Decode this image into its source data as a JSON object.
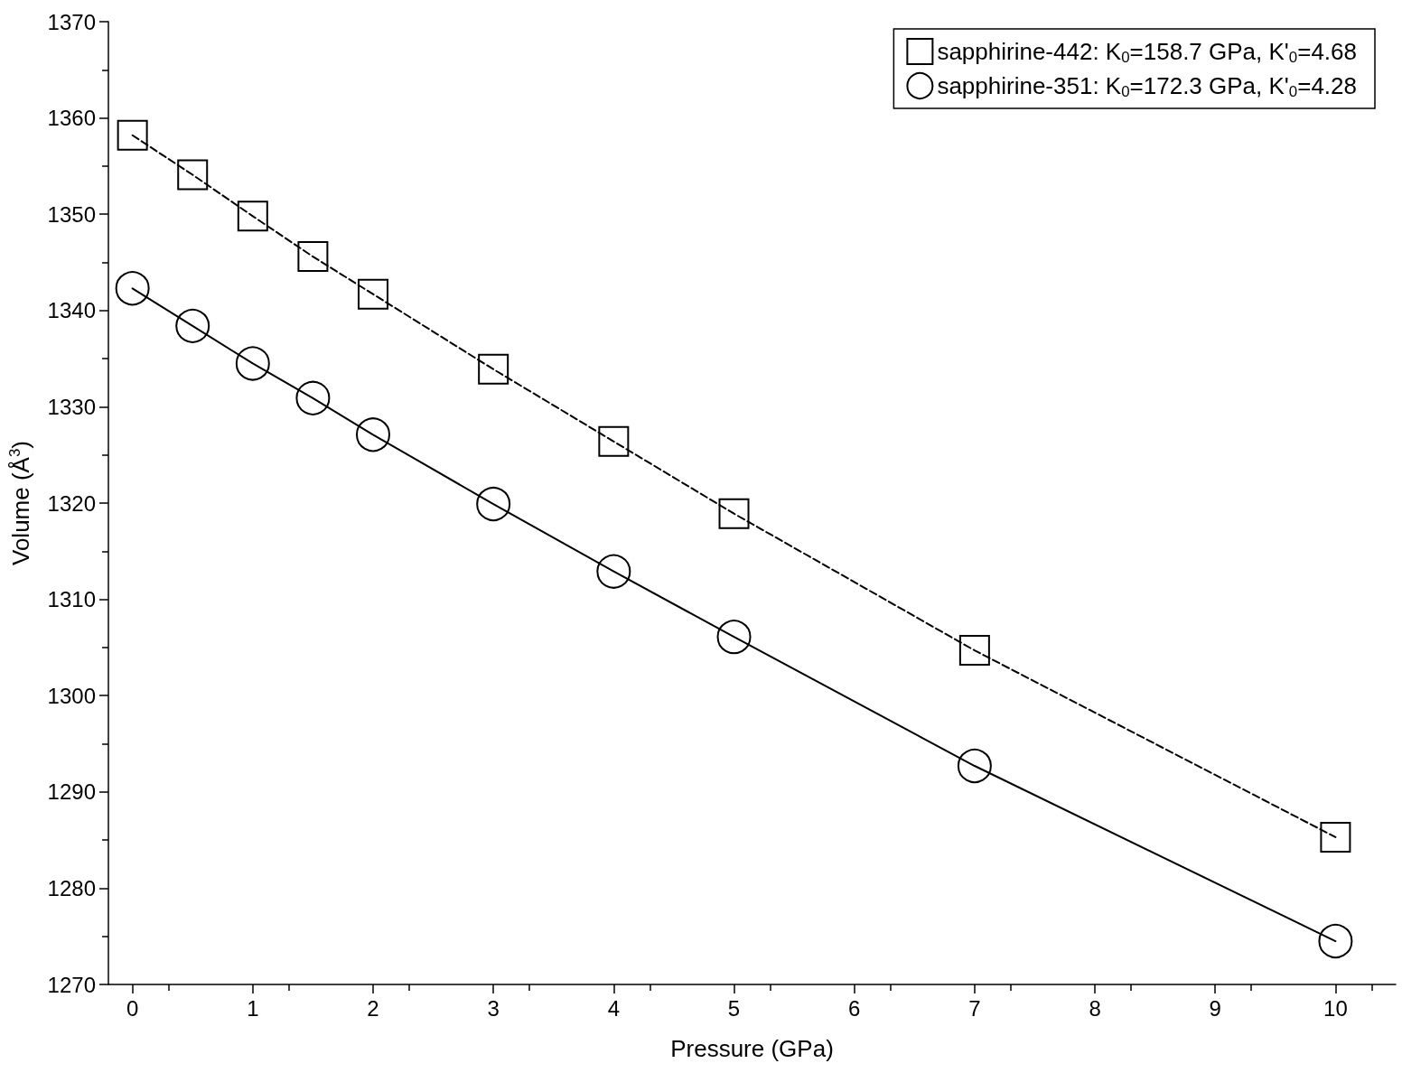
{
  "chart_data": {
    "type": "line",
    "xlabel": "Pressure (GPa)",
    "ylabel": "Volume (Å$^{3}$)",
    "x": [
      0,
      0.5,
      1,
      1.5,
      2,
      3,
      4,
      5,
      7,
      10
    ],
    "series": [
      {
        "name": "sapphirine-442: K$_{0}$=158.7 GPa, K'$_{0}$=4.68",
        "color": "#000000",
        "marker": "square",
        "line_style": "dashed",
        "values": [
          1358.2,
          1354.1,
          1349.8,
          1345.6,
          1341.7,
          1333.9,
          1326.4,
          1318.9,
          1304.7,
          1285.3
        ]
      },
      {
        "name": "sapphirine-351: K$_{0}$=172.3 GPa, K'$_{0}$=4.28",
        "color": "#000000",
        "marker": "circle",
        "line_style": "solid",
        "values": [
          1342.3,
          1338.4,
          1334.5,
          1330.9,
          1327.1,
          1319.9,
          1312.9,
          1306.1,
          1292.7,
          1274.5
        ]
      }
    ],
    "xlim": [
      -0.2,
      10.5
    ],
    "xticks": [
      0,
      1,
      2,
      3,
      4,
      5,
      6,
      7,
      8,
      9,
      10
    ],
    "ylim": [
      1270,
      1370
    ],
    "yticks": [
      1270,
      1280,
      1290,
      1300,
      1310,
      1320,
      1330,
      1340,
      1350,
      1360,
      1370
    ],
    "grid": false,
    "legend": "top right"
  }
}
